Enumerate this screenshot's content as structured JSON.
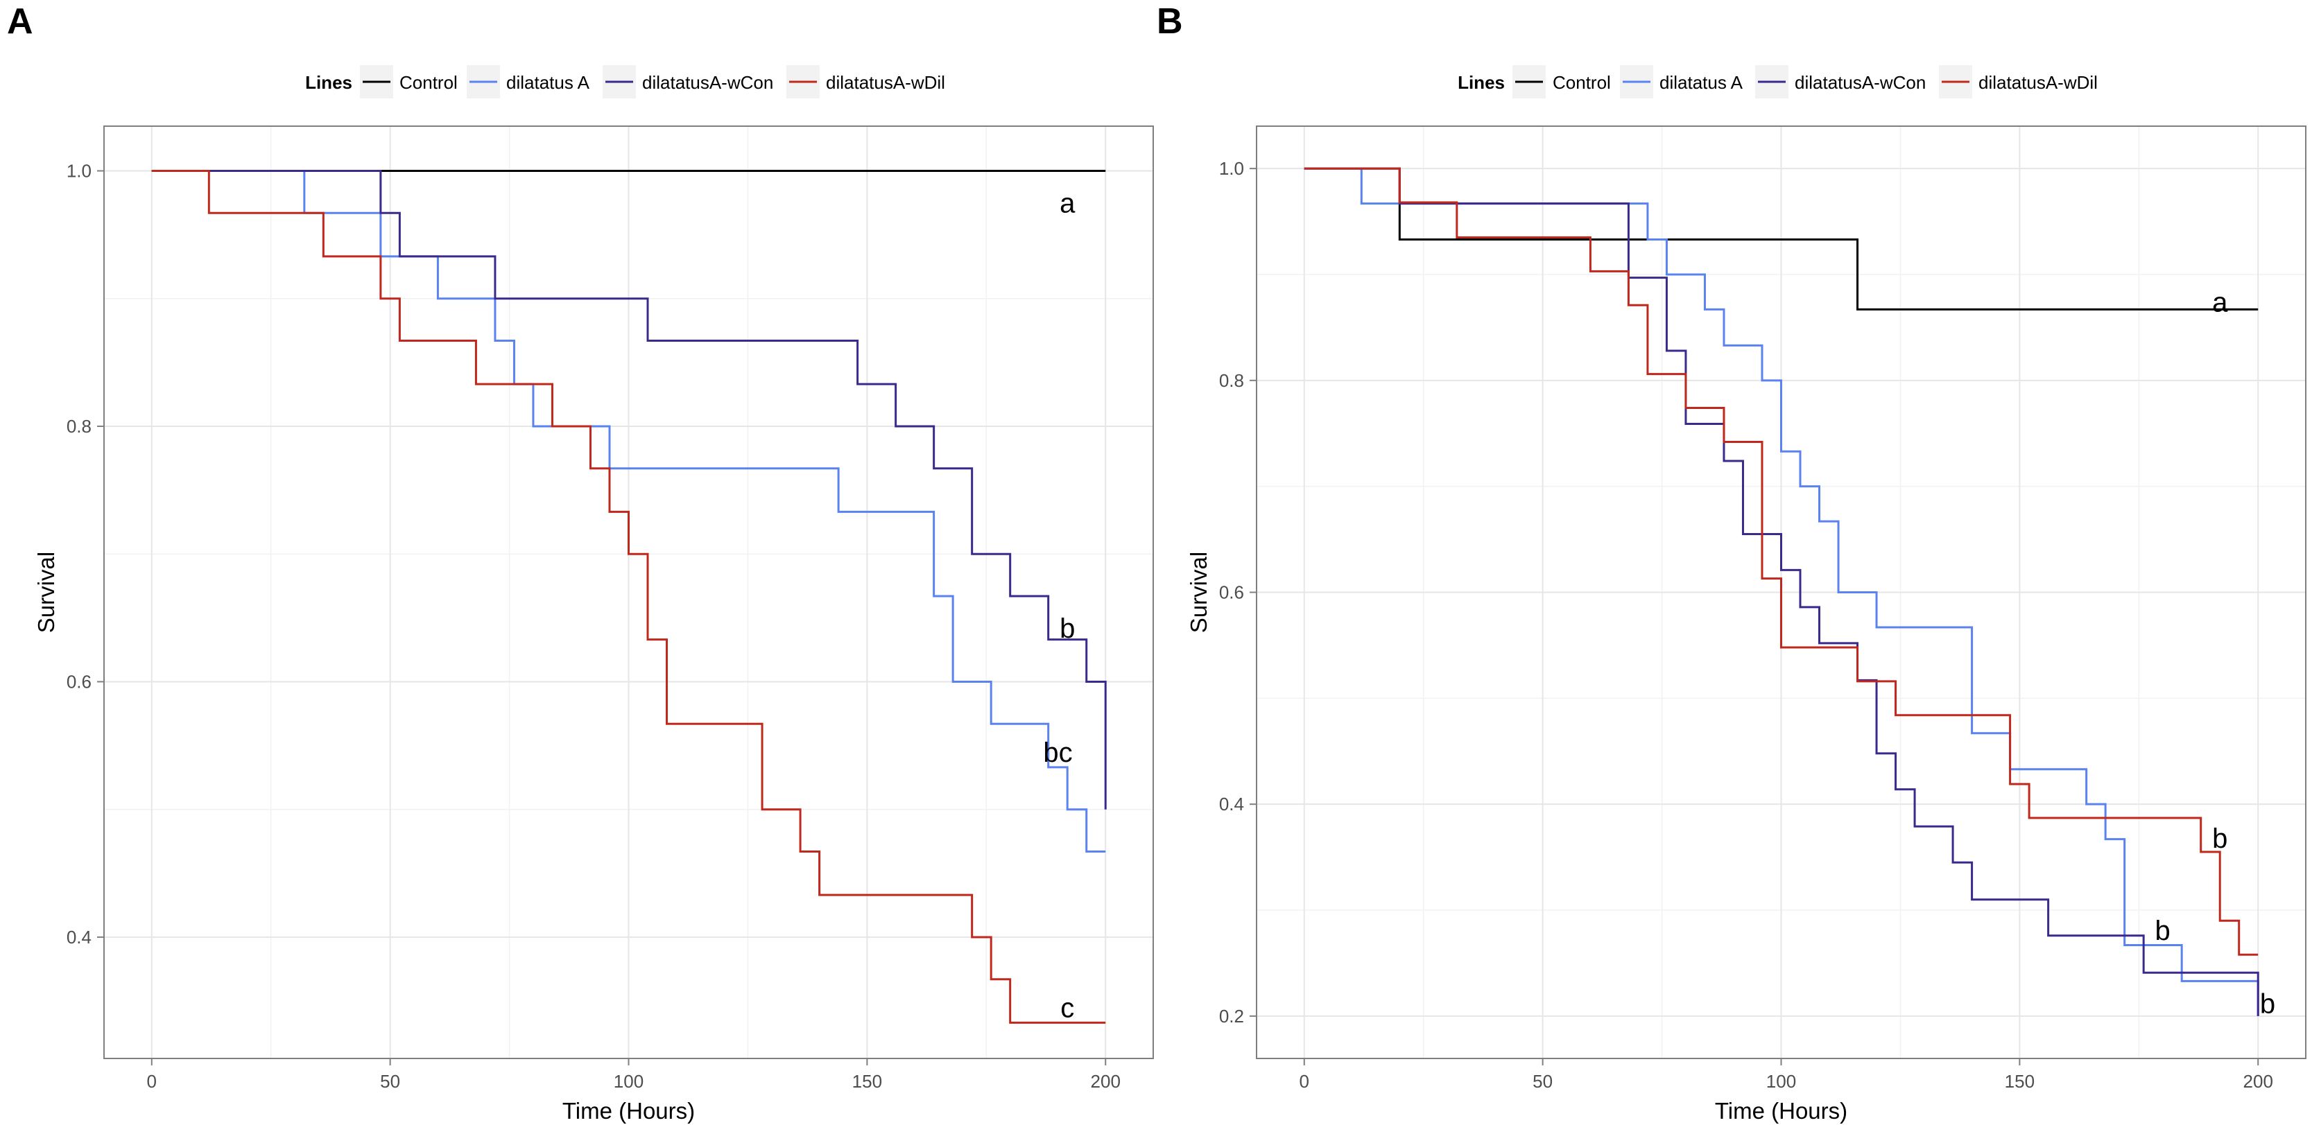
{
  "chart_data": [
    {
      "type": "line",
      "step": true,
      "panel_label": "A",
      "legend_title": "Lines",
      "xlabel": "Time (Hours)",
      "ylabel": "Survival",
      "xlim": [
        -10,
        210
      ],
      "ylim": [
        0.305,
        1.035
      ],
      "x_ticks": [
        0,
        50,
        100,
        150,
        200
      ],
      "x_tick_labels": [
        "0",
        "50",
        "100",
        "150",
        "200"
      ],
      "y_ticks": [
        0.4,
        0.6,
        0.8,
        1.0
      ],
      "y_tick_labels": [
        "0.4",
        "0.6",
        "0.8",
        "1.0"
      ],
      "grid": true,
      "legend_position": "top",
      "series": [
        {
          "name": "Control",
          "color": "#000000",
          "x": [
            0,
            200
          ],
          "y": [
            1.0,
            1.0
          ]
        },
        {
          "name": "dilatatus A",
          "color": "#5a82f0",
          "x": [
            0,
            32,
            48,
            60,
            72,
            76,
            80,
            96,
            144,
            164,
            168,
            176,
            188,
            192,
            196,
            200
          ],
          "y": [
            1.0,
            0.967,
            0.933,
            0.9,
            0.867,
            0.833,
            0.8,
            0.767,
            0.733,
            0.667,
            0.6,
            0.567,
            0.533,
            0.5,
            0.467,
            0.467
          ]
        },
        {
          "name": "dilatatusA-wCon",
          "color": "#3b2a8c",
          "x": [
            0,
            48,
            52,
            72,
            104,
            148,
            156,
            164,
            172,
            180,
            188,
            196,
            200
          ],
          "y": [
            1.0,
            0.967,
            0.933,
            0.9,
            0.867,
            0.833,
            0.8,
            0.767,
            0.7,
            0.667,
            0.633,
            0.6,
            0.5
          ]
        },
        {
          "name": "dilatatusA-wDil",
          "color": "#c0281e",
          "x": [
            0,
            12,
            36,
            48,
            52,
            68,
            84,
            92,
            96,
            100,
            104,
            108,
            128,
            136,
            140,
            172,
            176,
            180,
            200
          ],
          "y": [
            1.0,
            0.967,
            0.933,
            0.9,
            0.867,
            0.833,
            0.8,
            0.767,
            0.733,
            0.7,
            0.633,
            0.567,
            0.5,
            0.467,
            0.433,
            0.4,
            0.367,
            0.333,
            0.333
          ]
        }
      ],
      "annotations": [
        {
          "text": "a",
          "x": 192,
          "y": 0.975
        },
        {
          "text": "b",
          "x": 192,
          "y": 0.642
        },
        {
          "text": "bc",
          "x": 190,
          "y": 0.545
        },
        {
          "text": "c",
          "x": 192,
          "y": 0.345
        }
      ]
    },
    {
      "type": "line",
      "step": true,
      "panel_label": "B",
      "legend_title": "Lines",
      "xlabel": "Time (Hours)",
      "ylabel": "Survival",
      "xlim": [
        -10,
        210
      ],
      "ylim": [
        0.16,
        1.04
      ],
      "x_ticks": [
        0,
        50,
        100,
        150,
        200
      ],
      "x_tick_labels": [
        "0",
        "50",
        "100",
        "150",
        "200"
      ],
      "y_ticks": [
        0.2,
        0.4,
        0.6,
        0.8,
        1.0
      ],
      "y_tick_labels": [
        "0.2",
        "0.4",
        "0.6",
        "0.8",
        "1.0"
      ],
      "grid": true,
      "legend_position": "top",
      "series": [
        {
          "name": "Control",
          "color": "#000000",
          "x": [
            0,
            20,
            116,
            200
          ],
          "y": [
            1.0,
            0.933,
            0.867,
            0.867
          ]
        },
        {
          "name": "dilatatus A",
          "color": "#5a82f0",
          "x": [
            0,
            12,
            20,
            72,
            76,
            84,
            88,
            96,
            100,
            104,
            108,
            112,
            120,
            140,
            148,
            164,
            168,
            172,
            184,
            200
          ],
          "y": [
            1.0,
            0.967,
            0.967,
            0.933,
            0.9,
            0.867,
            0.833,
            0.8,
            0.733,
            0.7,
            0.667,
            0.6,
            0.567,
            0.467,
            0.433,
            0.4,
            0.367,
            0.267,
            0.233,
            0.2
          ]
        },
        {
          "name": "dilatatusA-wCon",
          "color": "#3b2a8c",
          "x": [
            0,
            20,
            68,
            76,
            80,
            88,
            92,
            100,
            104,
            108,
            116,
            120,
            124,
            128,
            136,
            140,
            156,
            176,
            200
          ],
          "y": [
            1.0,
            0.967,
            0.897,
            0.828,
            0.759,
            0.724,
            0.655,
            0.621,
            0.586,
            0.552,
            0.517,
            0.448,
            0.414,
            0.379,
            0.345,
            0.31,
            0.276,
            0.241,
            0.2
          ]
        },
        {
          "name": "dilatatusA-wDil",
          "color": "#c0281e",
          "x": [
            0,
            20,
            32,
            60,
            68,
            72,
            80,
            88,
            96,
            100,
            116,
            124,
            148,
            152,
            188,
            192,
            196,
            200
          ],
          "y": [
            1.0,
            0.968,
            0.935,
            0.903,
            0.871,
            0.806,
            0.774,
            0.742,
            0.613,
            0.548,
            0.516,
            0.484,
            0.419,
            0.387,
            0.355,
            0.29,
            0.258,
            0.258
          ]
        }
      ],
      "annotations": [
        {
          "text": "a",
          "x": 192,
          "y": 0.874
        },
        {
          "text": "b",
          "x": 192,
          "y": 0.368
        },
        {
          "text": "b",
          "x": 180,
          "y": 0.281
        },
        {
          "text": "b",
          "x": 202,
          "y": 0.212
        }
      ]
    }
  ]
}
